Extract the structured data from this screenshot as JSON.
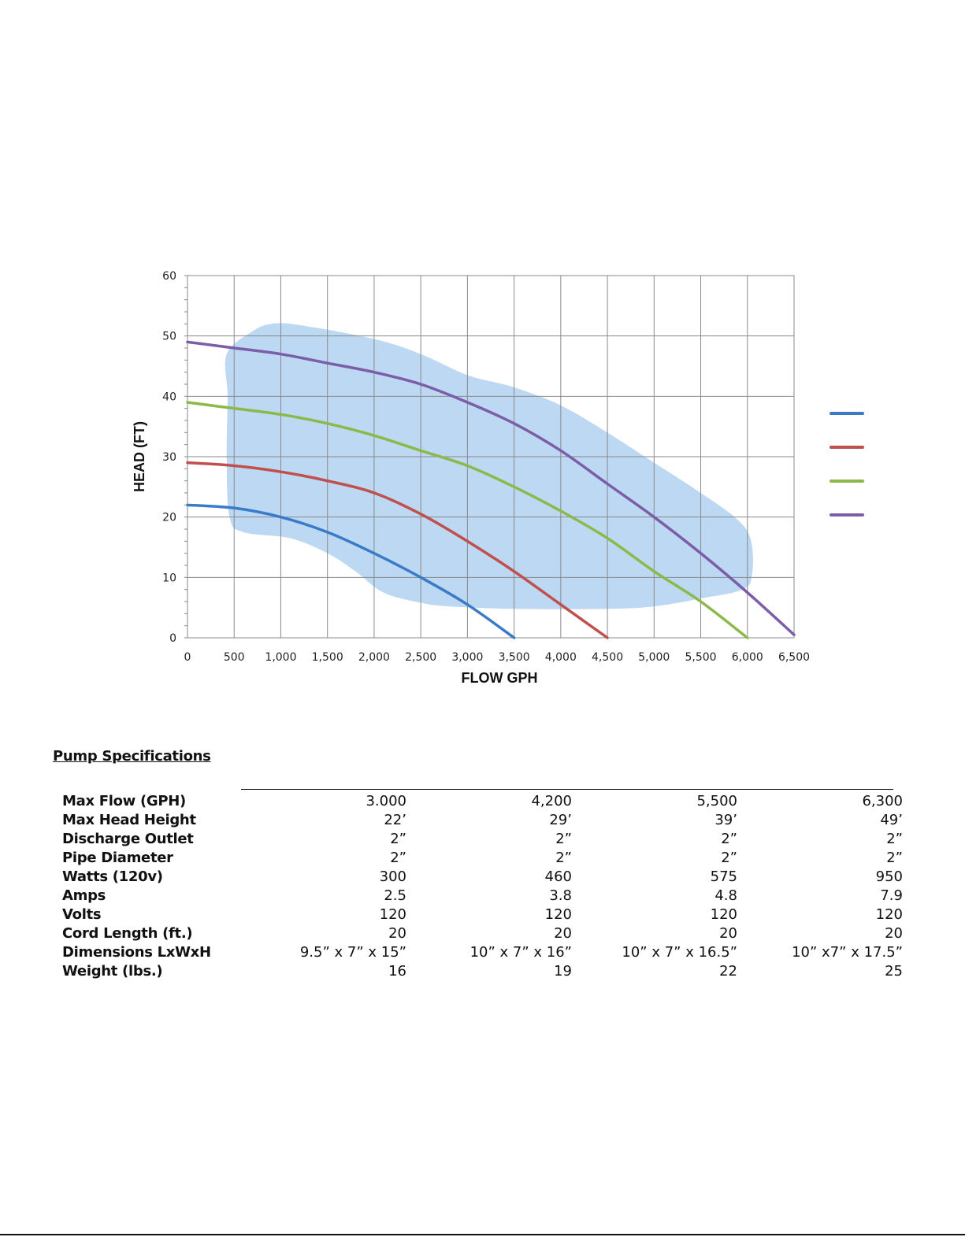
{
  "chart_data": {
    "type": "line",
    "xlabel": "FLOW GPH",
    "ylabel": "HEAD (FT)",
    "xlim": [
      0,
      6500
    ],
    "ylim": [
      0,
      60
    ],
    "x_ticks": [
      0,
      500,
      1000,
      1500,
      2000,
      2500,
      3000,
      3500,
      4000,
      4500,
      5000,
      5500,
      6000,
      6500
    ],
    "x_tick_labels": [
      "0",
      "500",
      "1,000",
      "1,500",
      "2,000",
      "2,500",
      "3,000",
      "3,500",
      "4,000",
      "4,500",
      "5,000",
      "5,500",
      "6,000",
      "6,500"
    ],
    "y_ticks": [
      0,
      10,
      20,
      30,
      40,
      50,
      60
    ],
    "y_tick_labels": [
      "0",
      "10",
      "20",
      "30",
      "40",
      "50",
      "60"
    ],
    "grid": true,
    "legend_position": "right",
    "series": [
      {
        "color": "#3a7bc8",
        "points": [
          [
            0,
            22
          ],
          [
            500,
            21.5
          ],
          [
            1000,
            20
          ],
          [
            1500,
            17.5
          ],
          [
            2000,
            14
          ],
          [
            2500,
            10
          ],
          [
            3000,
            5.5
          ],
          [
            3500,
            0
          ]
        ]
      },
      {
        "color": "#c0504d",
        "points": [
          [
            0,
            29
          ],
          [
            500,
            28.5
          ],
          [
            1000,
            27.5
          ],
          [
            1500,
            26
          ],
          [
            2000,
            24
          ],
          [
            2500,
            20.5
          ],
          [
            3000,
            16
          ],
          [
            3500,
            11
          ],
          [
            4000,
            5.5
          ],
          [
            4500,
            0
          ]
        ]
      },
      {
        "color": "#8db84a",
        "points": [
          [
            0,
            39
          ],
          [
            500,
            38
          ],
          [
            1000,
            37
          ],
          [
            1500,
            35.5
          ],
          [
            2000,
            33.5
          ],
          [
            2500,
            31
          ],
          [
            3000,
            28.5
          ],
          [
            3500,
            25
          ],
          [
            4000,
            21
          ],
          [
            4500,
            16.5
          ],
          [
            5000,
            11
          ],
          [
            5500,
            6
          ],
          [
            6000,
            0
          ]
        ]
      },
      {
        "color": "#7b5ea7",
        "points": [
          [
            0,
            49
          ],
          [
            500,
            48
          ],
          [
            1000,
            47
          ],
          [
            1500,
            45.5
          ],
          [
            2000,
            44
          ],
          [
            2500,
            42
          ],
          [
            3000,
            39
          ],
          [
            3500,
            35.5
          ],
          [
            4000,
            31
          ],
          [
            4500,
            25.5
          ],
          [
            5000,
            20
          ],
          [
            5500,
            14
          ],
          [
            6000,
            7.5
          ],
          [
            6500,
            0.5
          ]
        ]
      }
    ],
    "operating_region": {
      "color": "#bcd8f2",
      "points": [
        [
          420,
          47
        ],
        [
          700,
          50.8
        ],
        [
          900,
          52
        ],
        [
          1200,
          51.8
        ],
        [
          2000,
          49.5
        ],
        [
          2500,
          47
        ],
        [
          3000,
          43.5
        ],
        [
          3500,
          41.5
        ],
        [
          4000,
          38.5
        ],
        [
          4500,
          34
        ],
        [
          5000,
          29
        ],
        [
          5500,
          24
        ],
        [
          5900,
          19.5
        ],
        [
          6040,
          16
        ],
        [
          6050,
          10.5
        ],
        [
          5950,
          8
        ],
        [
          5500,
          6.5
        ],
        [
          5000,
          5.2
        ],
        [
          4500,
          4.8
        ],
        [
          3500,
          4.8
        ],
        [
          2800,
          5.2
        ],
        [
          2500,
          5.8
        ],
        [
          2100,
          7.5
        ],
        [
          1800,
          11
        ],
        [
          1500,
          14
        ],
        [
          1100,
          16.5
        ],
        [
          600,
          17.5
        ],
        [
          450,
          20
        ],
        [
          420,
          30
        ],
        [
          430,
          40
        ]
      ]
    }
  },
  "specifications": {
    "heading": "Pump Specifications",
    "rows": [
      {
        "label": "Max Flow (GPH)",
        "values": [
          "3.000",
          "4,200",
          "5,500",
          "6,300"
        ]
      },
      {
        "label": "Max Head Height",
        "values": [
          "22’",
          "29’",
          "39’",
          "49’"
        ]
      },
      {
        "label": "Discharge Outlet",
        "values": [
          "2”",
          "2”",
          "2”",
          "2”"
        ]
      },
      {
        "label": "Pipe Diameter",
        "values": [
          "2”",
          "2”",
          "2”",
          "2”"
        ]
      },
      {
        "label": "Watts (120v)",
        "values": [
          "300",
          "460",
          "575",
          "950"
        ]
      },
      {
        "label": "Amps",
        "values": [
          "2.5",
          "3.8",
          "4.8",
          "7.9"
        ]
      },
      {
        "label": "Volts",
        "values": [
          "120",
          "120",
          "120",
          "120"
        ]
      },
      {
        "label": "Cord Length (ft.)",
        "values": [
          "20",
          "20",
          "20",
          "20"
        ]
      },
      {
        "label": "Dimensions LxWxH",
        "values": [
          "9.5” x 7” x 15”",
          "10” x 7” x 16”",
          "10” x 7” x 16.5”",
          "10” x7” x 17.5”"
        ]
      },
      {
        "label": "Weight (lbs.)",
        "values": [
          "16",
          "19",
          "22",
          "25"
        ]
      }
    ]
  }
}
